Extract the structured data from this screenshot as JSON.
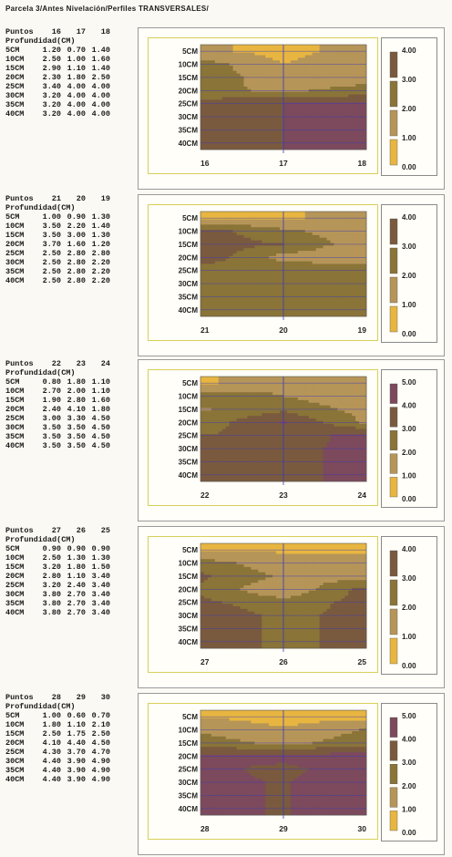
{
  "title": "Parcela 3/Antes Nivelación/Perfiles TRANSVERSALES/",
  "puntos_label": "Puntos",
  "profundidad_label": "Profundidad(CM)",
  "colors": {
    "level0": "#e8b640",
    "level1": "#b69558",
    "level2": "#8a7438",
    "level3": "#7a5a3e",
    "level4": "#7c4a5c",
    "level5": "#4f6a5e",
    "blue_line": "#3a3ab8"
  },
  "chart_data": [
    {
      "type": "heatmap",
      "points": [
        "16",
        "17",
        "18"
      ],
      "depths": [
        "5CM",
        "10CM",
        "15CM",
        "20CM",
        "25CM",
        "30CM",
        "35CM",
        "40CM"
      ],
      "values": [
        [
          "1.20",
          "0.70",
          "1.40"
        ],
        [
          "2.50",
          "1.00",
          "1.60"
        ],
        [
          "2.90",
          "1.10",
          "1.40"
        ],
        [
          "2.30",
          "1.80",
          "2.50"
        ],
        [
          "3.40",
          "4.00",
          "4.00"
        ],
        [
          "3.20",
          "4.00",
          "4.00"
        ],
        [
          "3.20",
          "4.00",
          "4.00"
        ],
        [
          "3.20",
          "4.00",
          "4.00"
        ]
      ],
      "legend": [
        "4.00",
        "3.00",
        "2.00",
        "1.00",
        "0.00"
      ]
    },
    {
      "type": "heatmap",
      "points": [
        "21",
        "20",
        "19"
      ],
      "depths": [
        "5CM",
        "10CM",
        "15CM",
        "20CM",
        "25CM",
        "30CM",
        "35CM",
        "40CM"
      ],
      "values": [
        [
          "1.00",
          "0.90",
          "1.30"
        ],
        [
          "3.50",
          "2.20",
          "1.40"
        ],
        [
          "3.50",
          "3.00",
          "1.30"
        ],
        [
          "3.70",
          "1.60",
          "1.20"
        ],
        [
          "2.50",
          "2.80",
          "2.80"
        ],
        [
          "2.50",
          "2.80",
          "2.20"
        ],
        [
          "2.50",
          "2.80",
          "2.20"
        ],
        [
          "2.50",
          "2.80",
          "2.20"
        ]
      ],
      "legend": [
        "4.00",
        "3.00",
        "2.00",
        "1.00",
        "0.00"
      ]
    },
    {
      "type": "heatmap",
      "points": [
        "22",
        "23",
        "24"
      ],
      "depths": [
        "5CM",
        "10CM",
        "15CM",
        "20CM",
        "25CM",
        "30CM",
        "35CM",
        "40CM"
      ],
      "values": [
        [
          "0.80",
          "1.80",
          "1.10"
        ],
        [
          "2.70",
          "2.00",
          "1.10"
        ],
        [
          "1.90",
          "2.80",
          "1.60"
        ],
        [
          "2.40",
          "4.10",
          "1.80"
        ],
        [
          "3.00",
          "3.30",
          "4.50"
        ],
        [
          "3.50",
          "3.50",
          "4.50"
        ],
        [
          "3.50",
          "3.50",
          "4.50"
        ],
        [
          "3.50",
          "3.50",
          "4.50"
        ]
      ],
      "legend": [
        "5.00",
        "4.00",
        "3.00",
        "2.00",
        "1.00",
        "0.00"
      ]
    },
    {
      "type": "heatmap",
      "points": [
        "27",
        "26",
        "25"
      ],
      "depths": [
        "5CM",
        "10CM",
        "15CM",
        "20CM",
        "25CM",
        "30CM",
        "35CM",
        "40CM"
      ],
      "values": [
        [
          "0.90",
          "0.90",
          "0.90"
        ],
        [
          "2.50",
          "1.30",
          "1.30"
        ],
        [
          "3.20",
          "1.80",
          "1.50"
        ],
        [
          "2.80",
          "1.10",
          "3.40"
        ],
        [
          "3.20",
          "2.40",
          "3.40"
        ],
        [
          "3.80",
          "2.70",
          "3.40"
        ],
        [
          "3.80",
          "2.70",
          "3.40"
        ],
        [
          "3.80",
          "2.70",
          "3.40"
        ]
      ],
      "legend": [
        "4.00",
        "3.00",
        "2.00",
        "1.00",
        "0.00"
      ]
    },
    {
      "type": "heatmap",
      "points": [
        "28",
        "29",
        "30"
      ],
      "depths": [
        "5CM",
        "10CM",
        "15CM",
        "20CM",
        "25CM",
        "30CM",
        "35CM",
        "40CM"
      ],
      "values": [
        [
          "1.00",
          "0.60",
          "0.70"
        ],
        [
          "1.80",
          "1.10",
          "2.10"
        ],
        [
          "2.50",
          "1.75",
          "2.50"
        ],
        [
          "4.10",
          "4.40",
          "4.50"
        ],
        [
          "4.30",
          "3.70",
          "4.70"
        ],
        [
          "4.40",
          "3.90",
          "4.90"
        ],
        [
          "4.40",
          "3.90",
          "4.90"
        ],
        [
          "4.40",
          "3.90",
          "4.90"
        ]
      ],
      "legend": [
        "5.00",
        "4.00",
        "3.00",
        "2.00",
        "1.00",
        "0.00"
      ]
    }
  ]
}
